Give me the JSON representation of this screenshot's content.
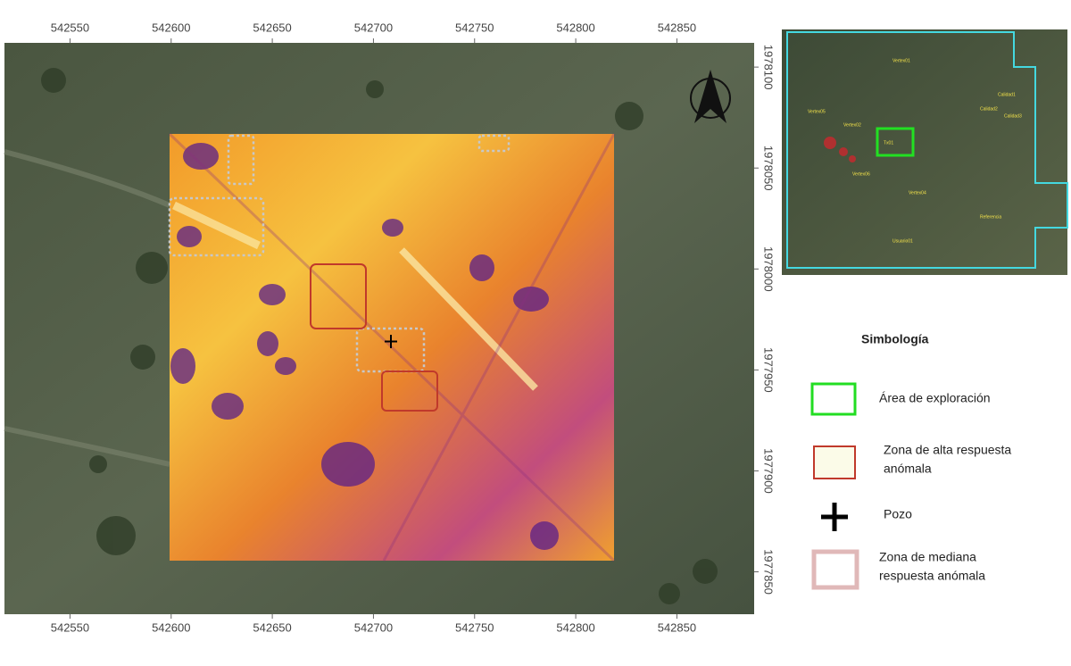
{
  "map": {
    "xlim": [
      542517.6,
      542888.2
    ],
    "ylim": [
      1977829,
      1978112
    ],
    "xticks": [
      542550,
      542600,
      542650,
      542700,
      542750,
      542800,
      542850
    ],
    "yticks": [
      1978100,
      1978050,
      1978000,
      1977950,
      1977900,
      1977850
    ]
  },
  "inset": {
    "labels": [
      "Vertex01",
      "Vertex02",
      "Vertex04",
      "Vertex05",
      "Vertex06",
      "Tx01",
      "Calidad1",
      "Calidad2",
      "Calidad3",
      "Usuario01",
      "Referencia"
    ]
  },
  "legend": {
    "title": "Simbología",
    "items": [
      {
        "lines": [
          "Área de exploración"
        ]
      },
      {
        "lines": [
          "Zona de alta respuesta",
          "anómala"
        ]
      },
      {
        "lines": [
          "Pozo"
        ]
      },
      {
        "lines": [
          "Zona de mediana",
          "respuesta anómala"
        ]
      }
    ]
  }
}
